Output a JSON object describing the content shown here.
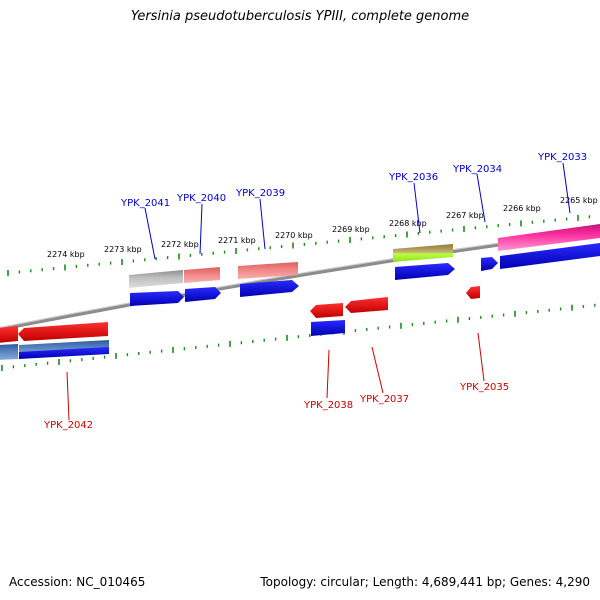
{
  "title": "Yersinia pseudotuberculosis YPIII, complete genome",
  "footer": {
    "accession": "Accession: NC_010465",
    "topology": "Topology: circular; Length: 4,689,441 bp; Genes: 4,290"
  },
  "colors": {
    "tick": "#1a8a1a",
    "backbone": "#8c8c8c",
    "label_top": "#0000cc",
    "label_bottom": "#cc0000"
  },
  "chart_data": {
    "type": "genome-map",
    "scale_labels": [
      {
        "text": "2274 kbp",
        "kbp": 2274
      },
      {
        "text": "2273 kbp",
        "kbp": 2273
      },
      {
        "text": "2272 kbp",
        "kbp": 2272
      },
      {
        "text": "2271 kbp",
        "kbp": 2271
      },
      {
        "text": "2270 kbp",
        "kbp": 2270
      },
      {
        "text": "2269 kbp",
        "kbp": 2269
      },
      {
        "text": "2268 kbp",
        "kbp": 2268
      },
      {
        "text": "2267 kbp",
        "kbp": 2267
      },
      {
        "text": "2266 kbp",
        "kbp": 2266
      },
      {
        "text": "2265 kbp",
        "kbp": 2265
      }
    ],
    "gene_labels_top": [
      "YPK_2041",
      "YPK_2040",
      "YPK_2039",
      "YPK_2036",
      "YPK_2034",
      "YPK_2033"
    ],
    "gene_labels_bottom": [
      "YPK_2042",
      "YPK_2038",
      "YPK_2037",
      "YPK_2035"
    ]
  }
}
